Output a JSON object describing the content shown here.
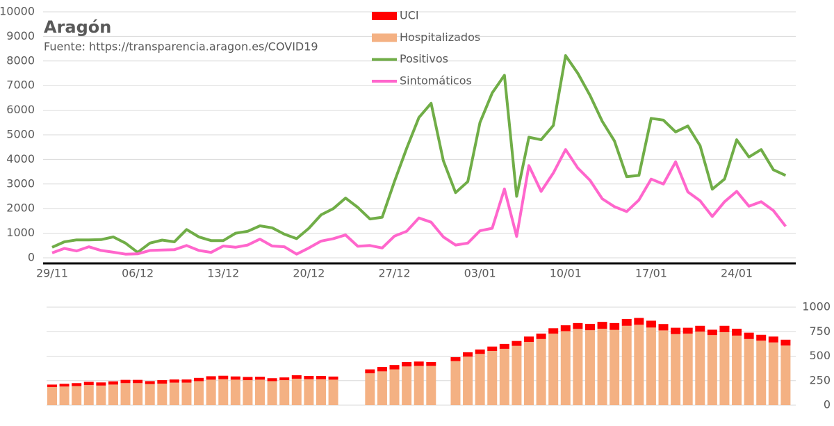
{
  "chart_data": [
    {
      "type": "line",
      "title": "Aragón",
      "subtitle": "Fuente: https://transparencia.aragon.es/COVID19",
      "categories": [
        "29/11",
        null,
        null,
        null,
        null,
        null,
        null,
        "06/12",
        null,
        null,
        null,
        null,
        null,
        null,
        "13/12",
        null,
        null,
        null,
        null,
        null,
        null,
        "20/12",
        null,
        null,
        null,
        null,
        null,
        null,
        "27/12",
        null,
        null,
        null,
        null,
        null,
        null,
        "03/01",
        null,
        null,
        null,
        null,
        null,
        null,
        "10/01",
        null,
        null,
        null,
        null,
        null,
        null,
        "17/01",
        null,
        null,
        null,
        null,
        null,
        null,
        "24/01",
        null,
        null,
        null,
        null
      ],
      "series": [
        {
          "name": "Positivos",
          "color": "#70ad47",
          "values": [
            430,
            650,
            730,
            730,
            740,
            850,
            600,
            220,
            600,
            720,
            650,
            1150,
            850,
            700,
            700,
            1000,
            1080,
            1300,
            1220,
            960,
            780,
            1200,
            1750,
            2000,
            2430,
            2050,
            1580,
            1650,
            3100,
            4450,
            5700,
            6280,
            3950,
            2650,
            3100,
            5500,
            6700,
            7420,
            2500,
            4900,
            4800,
            5380,
            8220,
            7500,
            6600,
            5550,
            4750,
            3300,
            3350,
            5670,
            5600,
            5120,
            5360,
            4560,
            2790,
            3200,
            4800,
            4100,
            4400,
            3580,
            3350
          ]
        },
        {
          "name": "Sintomáticos",
          "color": "#ff66cc",
          "values": [
            200,
            380,
            280,
            450,
            300,
            230,
            150,
            160,
            300,
            320,
            330,
            500,
            300,
            220,
            480,
            430,
            520,
            760,
            480,
            450,
            150,
            400,
            680,
            780,
            930,
            470,
            500,
            400,
            880,
            1080,
            1620,
            1450,
            850,
            520,
            600,
            1100,
            1200,
            2800,
            870,
            3750,
            2700,
            3450,
            4400,
            3650,
            3150,
            2400,
            2080,
            1880,
            2350,
            3200,
            3000,
            3900,
            2680,
            2320,
            1680,
            2280,
            2700,
            2100,
            2280,
            1920,
            1280
          ]
        }
      ],
      "ylim": [
        0,
        10000
      ],
      "yticks": [
        0,
        1000,
        2000,
        3000,
        4000,
        5000,
        6000,
        7000,
        8000,
        9000,
        10000
      ],
      "grid": true
    },
    {
      "type": "bar",
      "stacked": true,
      "y_axis": "right",
      "categories": [
        null,
        null,
        null,
        null,
        null,
        null,
        null,
        null,
        null,
        null,
        null,
        null,
        null,
        null,
        null,
        null,
        null,
        null,
        null,
        null,
        null,
        null,
        null,
        null,
        null,
        null,
        null,
        null,
        null,
        null,
        null,
        null,
        null,
        null,
        null,
        null,
        null,
        null,
        null,
        null,
        null,
        null,
        null,
        null,
        null,
        null,
        null,
        null,
        null,
        null,
        null,
        null,
        null,
        null,
        null,
        null,
        null,
        null,
        null,
        null,
        null
      ],
      "series": [
        {
          "name": "UCI",
          "color": "#ff0000",
          "values": [
            25,
            28,
            30,
            33,
            32,
            33,
            33,
            33,
            30,
            35,
            32,
            32,
            33,
            35,
            35,
            33,
            33,
            30,
            30,
            28,
            35,
            33,
            33,
            32,
            null,
            null,
            40,
            45,
            45,
            45,
            45,
            40,
            null,
            40,
            45,
            45,
            45,
            50,
            50,
            55,
            55,
            55,
            60,
            60,
            65,
            70,
            70,
            70,
            70,
            70,
            65,
            65,
            60,
            60,
            55,
            65,
            70,
            65,
            60,
            60,
            60
          ]
        },
        {
          "name": "Hospitalizados",
          "color": "#f4b183",
          "values": [
            185,
            190,
            195,
            205,
            200,
            210,
            225,
            225,
            215,
            220,
            230,
            230,
            245,
            260,
            265,
            260,
            255,
            260,
            245,
            255,
            270,
            265,
            265,
            260,
            null,
            null,
            325,
            345,
            365,
            395,
            400,
            400,
            null,
            450,
            495,
            523,
            553,
            575,
            605,
            645,
            675,
            730,
            755,
            778,
            765,
            780,
            768,
            810,
            820,
            792,
            763,
            725,
            730,
            750,
            715,
            745,
            710,
            675,
            658,
            640,
            608
          ]
        }
      ],
      "ylim": [
        0,
        1000
      ],
      "yticks": [
        0,
        250,
        500,
        750,
        1000
      ],
      "grid": true
    }
  ]
}
